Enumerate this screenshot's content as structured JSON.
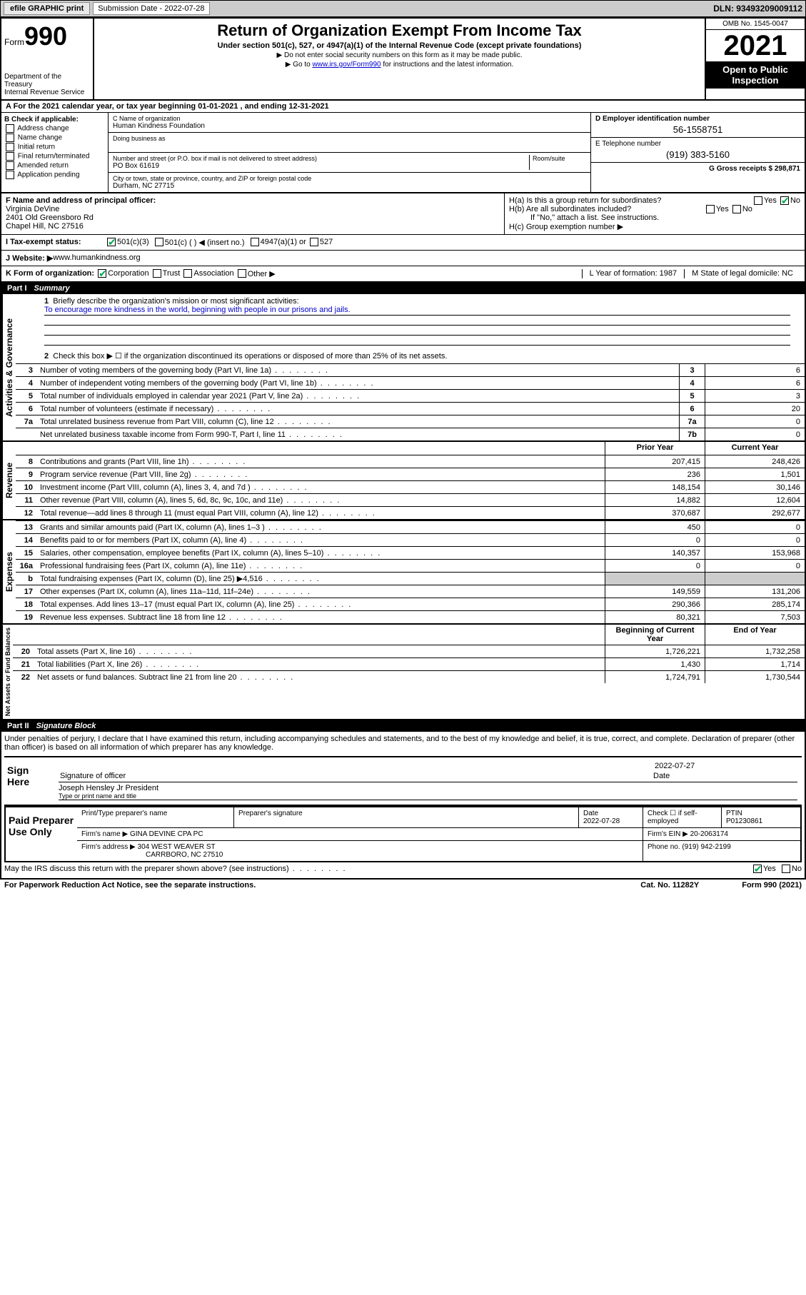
{
  "topbar": {
    "efile": "efile GRAPHIC print",
    "submission_label": "Submission Date - 2022-07-28",
    "dln": "DLN: 93493209009112"
  },
  "header": {
    "form_prefix": "Form",
    "form_num": "990",
    "dept": "Department of the Treasury",
    "irs": "Internal Revenue Service",
    "title": "Return of Organization Exempt From Income Tax",
    "subtitle": "Under section 501(c), 527, or 4947(a)(1) of the Internal Revenue Code (except private foundations)",
    "note1": "▶ Do not enter social security numbers on this form as it may be made public.",
    "note2_pre": "▶ Go to ",
    "note2_link": "www.irs.gov/Form990",
    "note2_post": " for instructions and the latest information.",
    "omb": "OMB No. 1545-0047",
    "year": "2021",
    "inspect": "Open to Public Inspection"
  },
  "period": "A For the 2021 calendar year, or tax year beginning 01-01-2021   , and ending 12-31-2021",
  "sectionB": {
    "title": "B Check if applicable:",
    "items": [
      "Address change",
      "Name change",
      "Initial return",
      "Final return/terminated",
      "Amended return",
      "Application pending"
    ]
  },
  "sectionC": {
    "name_lbl": "C Name of organization",
    "name": "Human Kindness Foundation",
    "dba_lbl": "Doing business as",
    "addr_lbl": "Number and street (or P.O. box if mail is not delivered to street address)",
    "room_lbl": "Room/suite",
    "addr": "PO Box 61619",
    "city_lbl": "City or town, state or province, country, and ZIP or foreign postal code",
    "city": "Durham, NC  27715"
  },
  "sectionD": {
    "lbl": "D Employer identification number",
    "val": "56-1558751"
  },
  "sectionE": {
    "lbl": "E Telephone number",
    "val": "(919) 383-5160"
  },
  "sectionG": "G Gross receipts $ 298,871",
  "sectionF": {
    "lbl": "F  Name and address of principal officer:",
    "name": "Virginia DeVine",
    "addr1": "2401 Old Greensboro Rd",
    "addr2": "Chapel Hill, NC  27516"
  },
  "sectionH": {
    "ha": "H(a)  Is this a group return for subordinates?",
    "hb": "H(b)  Are all subordinates included?",
    "hb_note": "If \"No,\" attach a list. See instructions.",
    "hc": "H(c)  Group exemption number ▶",
    "yes": "Yes",
    "no": "No"
  },
  "rowI": {
    "lbl": "I   Tax-exempt status:",
    "opt1": "501(c)(3)",
    "opt2": "501(c) (  ) ◀ (insert no.)",
    "opt3": "4947(a)(1) or",
    "opt4": "527"
  },
  "rowJ": {
    "lbl": "J   Website: ▶  ",
    "val": "www.humankindness.org"
  },
  "rowK": {
    "lbl": "K Form of organization:",
    "opts": [
      "Corporation",
      "Trust",
      "Association",
      "Other ▶"
    ]
  },
  "rowL": "L Year of formation: 1987",
  "rowM": "M State of legal domicile: NC",
  "part1": {
    "num": "Part I",
    "title": "Summary"
  },
  "summary": {
    "q1": "Briefly describe the organization's mission or most significant activities:",
    "mission": "To encourage more kindness in the world, beginning with people in our prisons and jails.",
    "q2": "Check this box ▶ ☐  if the organization discontinued its operations or disposed of more than 25% of its net assets.",
    "vert_gov": "Activities & Governance",
    "vert_rev": "Revenue",
    "vert_exp": "Expenses",
    "vert_net": "Net Assets or Fund Balances",
    "rows_gov": [
      {
        "n": "3",
        "d": "Number of voting members of the governing body (Part VI, line 1a)",
        "box": "3",
        "v": "6"
      },
      {
        "n": "4",
        "d": "Number of independent voting members of the governing body (Part VI, line 1b)",
        "box": "4",
        "v": "6"
      },
      {
        "n": "5",
        "d": "Total number of individuals employed in calendar year 2021 (Part V, line 2a)",
        "box": "5",
        "v": "3"
      },
      {
        "n": "6",
        "d": "Total number of volunteers (estimate if necessary)",
        "box": "6",
        "v": "20"
      },
      {
        "n": "7a",
        "d": "Total unrelated business revenue from Part VIII, column (C), line 12",
        "box": "7a",
        "v": "0"
      },
      {
        "n": "",
        "d": "Net unrelated business taxable income from Form 990-T, Part I, line 11",
        "box": "7b",
        "v": "0"
      }
    ],
    "head_prior": "Prior Year",
    "head_current": "Current Year",
    "rows_rev": [
      {
        "n": "8",
        "d": "Contributions and grants (Part VIII, line 1h)",
        "p": "207,415",
        "c": "248,426"
      },
      {
        "n": "9",
        "d": "Program service revenue (Part VIII, line 2g)",
        "p": "236",
        "c": "1,501"
      },
      {
        "n": "10",
        "d": "Investment income (Part VIII, column (A), lines 3, 4, and 7d )",
        "p": "148,154",
        "c": "30,146"
      },
      {
        "n": "11",
        "d": "Other revenue (Part VIII, column (A), lines 5, 6d, 8c, 9c, 10c, and 11e)",
        "p": "14,882",
        "c": "12,604"
      },
      {
        "n": "12",
        "d": "Total revenue—add lines 8 through 11 (must equal Part VIII, column (A), line 12)",
        "p": "370,687",
        "c": "292,677"
      }
    ],
    "rows_exp": [
      {
        "n": "13",
        "d": "Grants and similar amounts paid (Part IX, column (A), lines 1–3 )",
        "p": "450",
        "c": "0"
      },
      {
        "n": "14",
        "d": "Benefits paid to or for members (Part IX, column (A), line 4)",
        "p": "0",
        "c": "0"
      },
      {
        "n": "15",
        "d": "Salaries, other compensation, employee benefits (Part IX, column (A), lines 5–10)",
        "p": "140,357",
        "c": "153,968"
      },
      {
        "n": "16a",
        "d": "Professional fundraising fees (Part IX, column (A), line 11e)",
        "p": "0",
        "c": "0"
      },
      {
        "n": "b",
        "d": "Total fundraising expenses (Part IX, column (D), line 25) ▶4,516",
        "p": "GREY",
        "c": "GREY"
      },
      {
        "n": "17",
        "d": "Other expenses (Part IX, column (A), lines 11a–11d, 11f–24e)",
        "p": "149,559",
        "c": "131,206"
      },
      {
        "n": "18",
        "d": "Total expenses. Add lines 13–17 (must equal Part IX, column (A), line 25)",
        "p": "290,366",
        "c": "285,174"
      },
      {
        "n": "19",
        "d": "Revenue less expenses. Subtract line 18 from line 12",
        "p": "80,321",
        "c": "7,503"
      }
    ],
    "head_begin": "Beginning of Current Year",
    "head_end": "End of Year",
    "rows_net": [
      {
        "n": "20",
        "d": "Total assets (Part X, line 16)",
        "p": "1,726,221",
        "c": "1,732,258"
      },
      {
        "n": "21",
        "d": "Total liabilities (Part X, line 26)",
        "p": "1,430",
        "c": "1,714"
      },
      {
        "n": "22",
        "d": "Net assets or fund balances. Subtract line 21 from line 20",
        "p": "1,724,791",
        "c": "1,730,544"
      }
    ]
  },
  "part2": {
    "num": "Part II",
    "title": "Signature Block"
  },
  "sig": {
    "decl": "Under penalties of perjury, I declare that I have examined this return, including accompanying schedules and statements, and to the best of my knowledge and belief, it is true, correct, and complete. Declaration of preparer (other than officer) is based on all information of which preparer has any knowledge.",
    "here": "Sign Here",
    "date": "2022-07-27",
    "sig_lbl": "Signature of officer",
    "date_lbl": "Date",
    "officer": "Joseph Hensley Jr President",
    "officer_lbl": "Type or print name and title",
    "paid": "Paid Preparer Use Only",
    "h_name": "Print/Type preparer's name",
    "h_sig": "Preparer's signature",
    "h_date": "Date",
    "h_date_v": "2022-07-28",
    "h_check": "Check ☐ if self-employed",
    "h_ptin": "PTIN",
    "ptin": "P01230861",
    "firm_name_lbl": "Firm's name      ▶",
    "firm_name": "GINA DEVINE CPA PC",
    "firm_ein": "Firm's EIN ▶ 20-2063174",
    "firm_addr_lbl": "Firm's address ▶",
    "firm_addr": "304 WEST WEAVER ST",
    "firm_city": "CARRBORO, NC  27510",
    "firm_phone": "Phone no. (919) 942-2199",
    "may": "May the IRS discuss this return with the preparer shown above? (see instructions)"
  },
  "footer": {
    "left": "For Paperwork Reduction Act Notice, see the separate instructions.",
    "mid": "Cat. No. 11282Y",
    "right": "Form 990 (2021)"
  }
}
